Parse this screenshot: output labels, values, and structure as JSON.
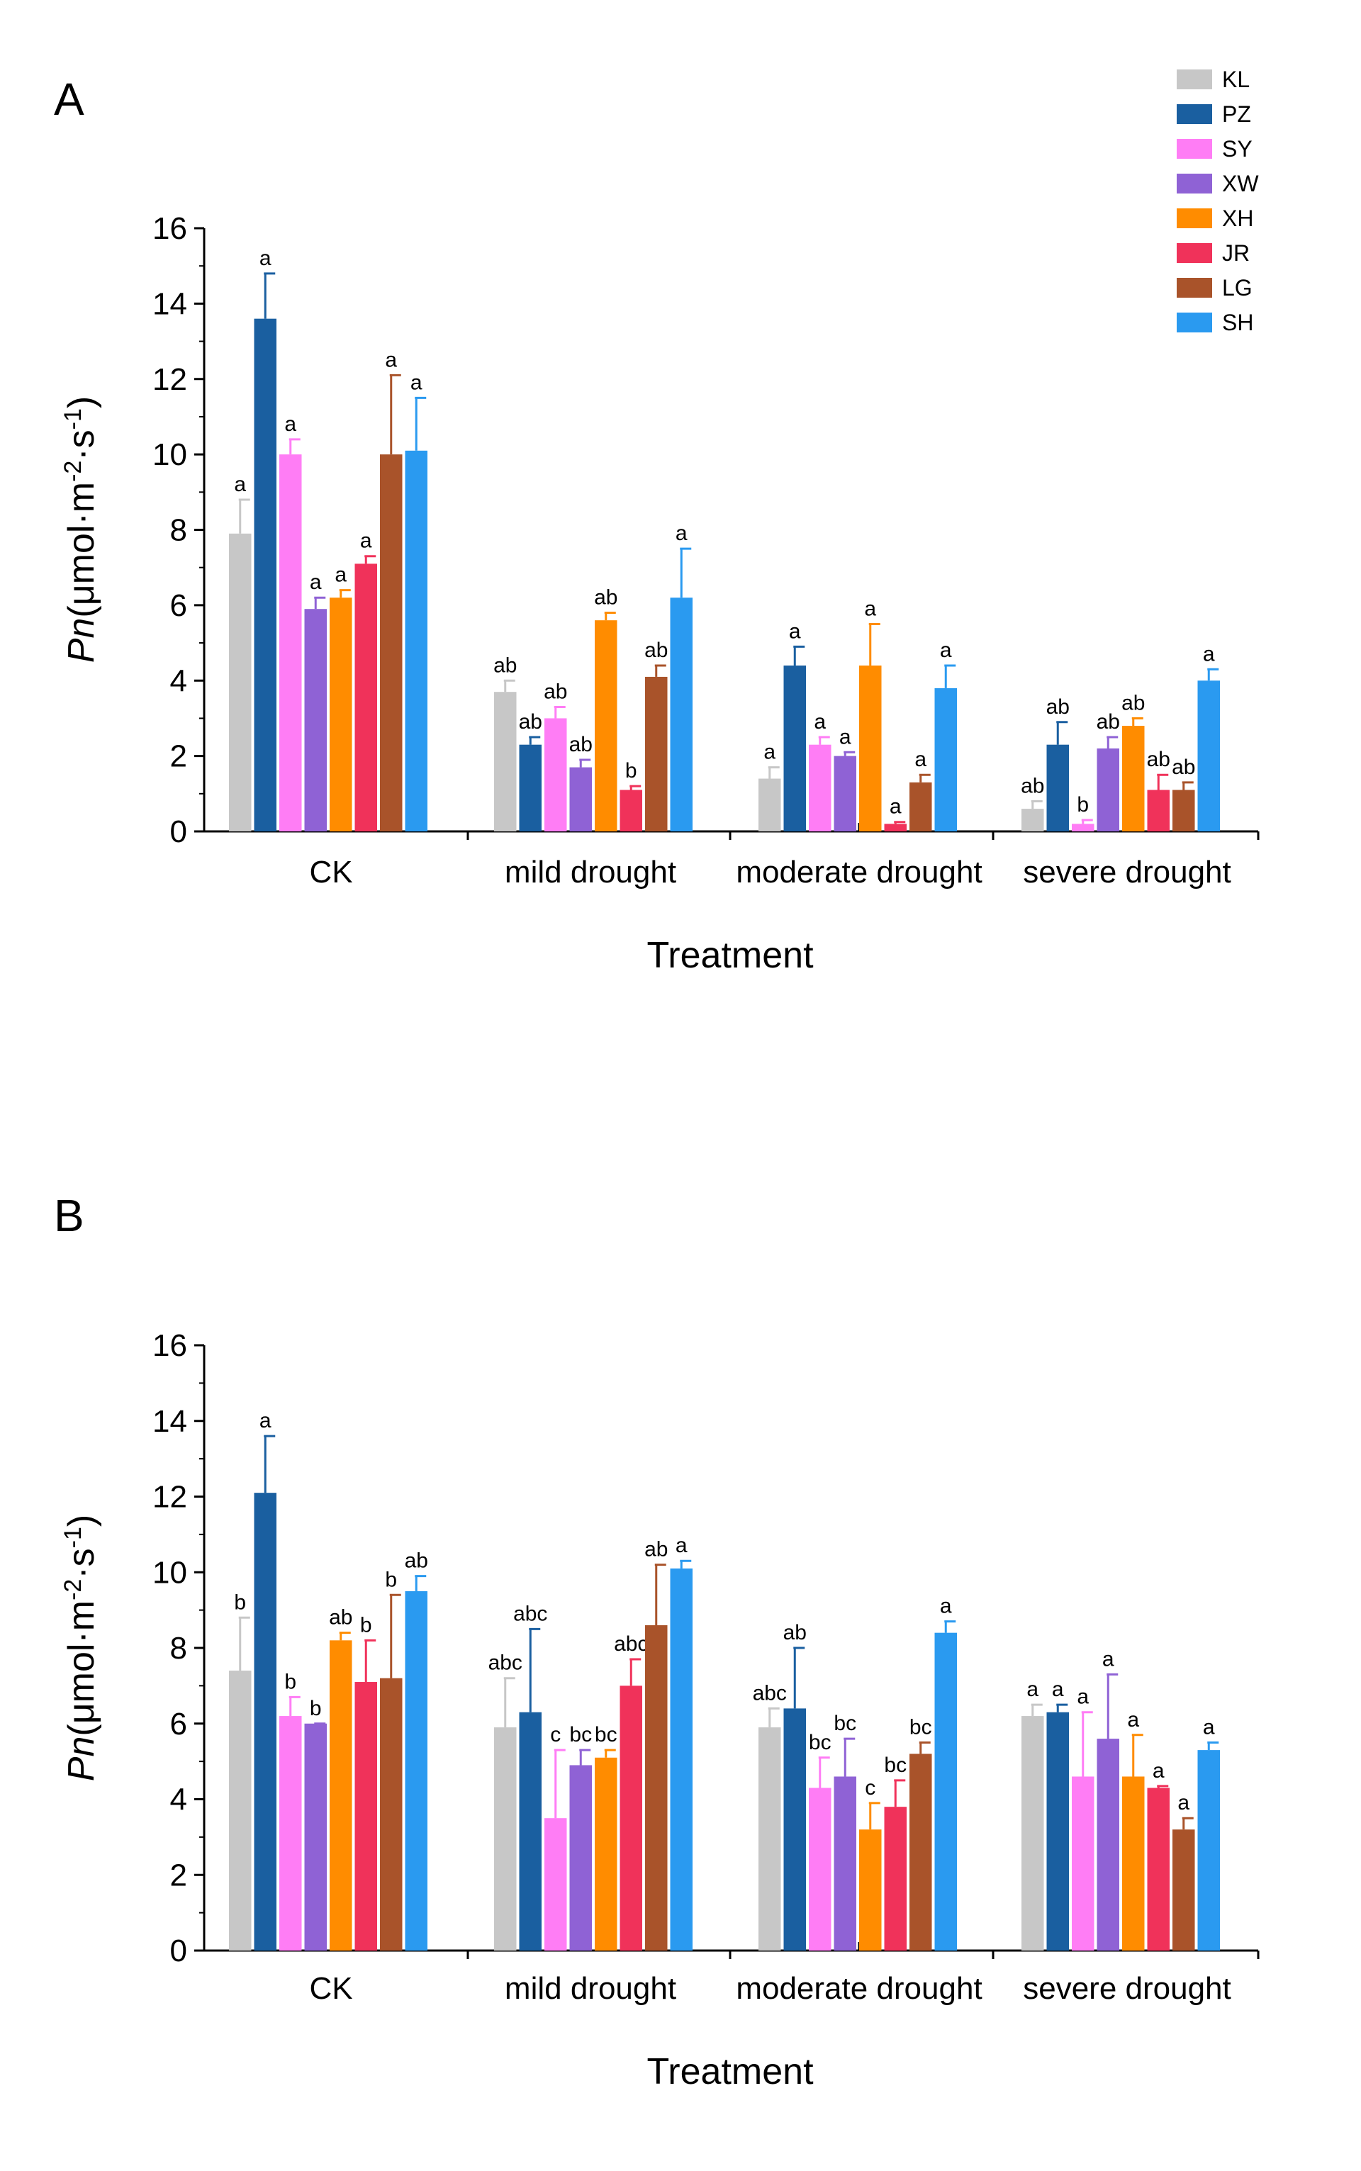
{
  "figure": {
    "legend": {
      "placement": "top-right",
      "entries": [
        {
          "name": "KL",
          "color": "#C7C7C7"
        },
        {
          "name": "PZ",
          "color": "#1A5FA0"
        },
        {
          "name": "SY",
          "color": "#FF7DF5"
        },
        {
          "name": "XW",
          "color": "#8F62D5"
        },
        {
          "name": "XH",
          "color": "#FF8C00"
        },
        {
          "name": "JR",
          "color": "#F0325A"
        },
        {
          "name": "LG",
          "color": "#A9532A"
        },
        {
          "name": "SH",
          "color": "#2A9AF0"
        }
      ]
    }
  },
  "chart_data": [
    {
      "type": "bar",
      "panel": "A",
      "xlabel": "Treatment",
      "ylabel_prefix": "Pn",
      "ylabel_unit": "(μmol·m",
      "ylabel_exp1": "-2",
      "ylabel_mid": "·s",
      "ylabel_exp2": "-1",
      "ylabel_end": ")",
      "ylim": [
        0,
        16
      ],
      "yticks": [
        "0",
        "2",
        "4",
        "6",
        "8",
        "10",
        "12",
        "14",
        "16"
      ],
      "categories": [
        "CK",
        "mild drought",
        "moderate drought",
        "severe drought"
      ],
      "series": [
        {
          "name": "KL",
          "values": [
            7.9,
            3.7,
            1.4,
            0.6
          ],
          "errors": [
            0.9,
            0.3,
            0.3,
            0.2
          ],
          "labels": [
            "a",
            "ab",
            "a",
            "ab"
          ]
        },
        {
          "name": "PZ",
          "values": [
            13.6,
            2.3,
            4.4,
            2.3
          ],
          "errors": [
            1.2,
            0.2,
            0.5,
            0.6
          ],
          "labels": [
            "a",
            "ab",
            "a",
            "ab"
          ]
        },
        {
          "name": "SY",
          "values": [
            10.0,
            3.0,
            2.3,
            0.2
          ],
          "errors": [
            0.4,
            0.3,
            0.2,
            0.1
          ],
          "labels": [
            "a",
            "ab",
            "a",
            "b"
          ]
        },
        {
          "name": "XW",
          "values": [
            5.9,
            1.7,
            2.0,
            2.2
          ],
          "errors": [
            0.3,
            0.2,
            0.1,
            0.3
          ],
          "labels": [
            "a",
            "ab",
            "a",
            "ab"
          ]
        },
        {
          "name": "XH",
          "values": [
            6.2,
            5.6,
            4.4,
            2.8
          ],
          "errors": [
            0.2,
            0.2,
            1.1,
            0.2
          ],
          "labels": [
            "a",
            "ab",
            "a",
            "ab"
          ]
        },
        {
          "name": "JR",
          "values": [
            7.1,
            1.1,
            0.2,
            1.1
          ],
          "errors": [
            0.2,
            0.1,
            0.05,
            0.4
          ],
          "labels": [
            "a",
            "b",
            "a",
            "ab"
          ]
        },
        {
          "name": "LG",
          "values": [
            10.0,
            4.1,
            1.3,
            1.1
          ],
          "errors": [
            2.1,
            0.3,
            0.2,
            0.2
          ],
          "labels": [
            "a",
            "ab",
            "a",
            "ab"
          ]
        },
        {
          "name": "SH",
          "values": [
            10.1,
            6.2,
            3.8,
            4.0
          ],
          "errors": [
            1.4,
            1.3,
            0.6,
            0.3
          ],
          "labels": [
            "a",
            "a",
            "a",
            "a"
          ]
        }
      ]
    },
    {
      "type": "bar",
      "panel": "B",
      "xlabel": "Treatment",
      "ylabel_prefix": "Pn",
      "ylabel_unit": "(μmol·m",
      "ylabel_exp1": "-2",
      "ylabel_mid": "·s",
      "ylabel_exp2": "-1",
      "ylabel_end": ")",
      "ylim": [
        0,
        16
      ],
      "yticks": [
        "0",
        "2",
        "4",
        "6",
        "8",
        "10",
        "12",
        "14",
        "16"
      ],
      "categories": [
        "CK",
        "mild drought",
        "moderate drought",
        "severe drought"
      ],
      "series": [
        {
          "name": "KL",
          "values": [
            7.4,
            5.9,
            5.9,
            6.2
          ],
          "errors": [
            1.4,
            1.3,
            0.5,
            0.3
          ],
          "labels": [
            "b",
            "abc",
            "abc",
            "a"
          ]
        },
        {
          "name": "PZ",
          "values": [
            12.1,
            6.3,
            6.4,
            6.3
          ],
          "errors": [
            1.5,
            2.2,
            1.6,
            0.2
          ],
          "labels": [
            "a",
            "abc",
            "ab",
            "a"
          ]
        },
        {
          "name": "SY",
          "values": [
            6.2,
            3.5,
            4.3,
            4.6
          ],
          "errors": [
            0.5,
            1.8,
            0.8,
            1.7
          ],
          "labels": [
            "b",
            "c",
            "bc",
            "a"
          ]
        },
        {
          "name": "XW",
          "values": [
            6.0,
            4.9,
            4.6,
            5.6
          ],
          "errors": [
            0.0,
            0.4,
            1.0,
            1.7
          ],
          "labels": [
            "b",
            "bc",
            "bc",
            "a"
          ]
        },
        {
          "name": "XH",
          "values": [
            8.2,
            5.1,
            3.2,
            4.6
          ],
          "errors": [
            0.2,
            0.2,
            0.7,
            1.1
          ],
          "labels": [
            "ab",
            "bc",
            "c",
            "a"
          ]
        },
        {
          "name": "JR",
          "values": [
            7.1,
            7.0,
            3.8,
            4.3
          ],
          "errors": [
            1.1,
            0.7,
            0.7,
            0.05
          ],
          "labels": [
            "b",
            "abc",
            "bc",
            "a"
          ]
        },
        {
          "name": "LG",
          "values": [
            7.2,
            8.6,
            5.2,
            3.2
          ],
          "errors": [
            2.2,
            1.6,
            0.3,
            0.3
          ],
          "labels": [
            "b",
            "ab",
            "bc",
            "a"
          ]
        },
        {
          "name": "SH",
          "values": [
            9.5,
            10.1,
            8.4,
            5.3
          ],
          "errors": [
            0.4,
            0.2,
            0.3,
            0.2
          ],
          "labels": [
            "ab",
            "a",
            "a",
            "a"
          ]
        }
      ]
    }
  ]
}
